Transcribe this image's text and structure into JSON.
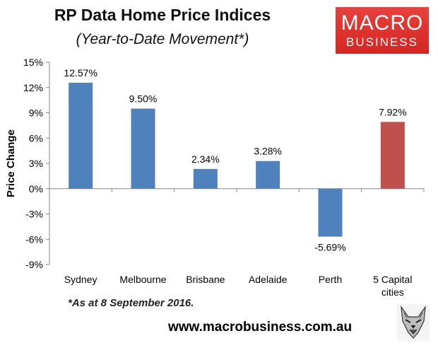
{
  "header": {
    "title": "RP Data Home Price Indices",
    "subtitle": "(Year-to-Date Movement*)"
  },
  "logo": {
    "line1": "MACRO",
    "line2": "BUSINESS"
  },
  "footnote": "*As at 8 September 2016.",
  "url": "www.macrobusiness.com.au",
  "colors": {
    "primary_bar": "#4f81bd",
    "highlight_bar": "#c0504d"
  },
  "chart_data": {
    "type": "bar",
    "title": "RP Data Home Price Indices",
    "subtitle": "(Year-to-Date Movement*)",
    "ylabel": "Price Change",
    "xlabel": "",
    "categories": [
      "Sydney",
      "Melbourne",
      "Brisbane",
      "Adelaide",
      "Perth",
      "5 Capital cities"
    ],
    "category_lines": [
      [
        "Sydney"
      ],
      [
        "Melbourne"
      ],
      [
        "Brisbane"
      ],
      [
        "Adelaide"
      ],
      [
        "Perth"
      ],
      [
        "5 Capital",
        "cities"
      ]
    ],
    "values": [
      12.57,
      9.5,
      2.34,
      3.28,
      -5.69,
      7.92
    ],
    "data_labels": [
      "12.57%",
      "9.50%",
      "2.34%",
      "3.28%",
      "-5.69%",
      "7.92%"
    ],
    "highlight_index": 5,
    "ylim": [
      -9,
      15
    ],
    "yticks": [
      15,
      12,
      9,
      6,
      3,
      0,
      -3,
      -6,
      -9
    ],
    "ytick_labels": [
      "15%",
      "12%",
      "9%",
      "6%",
      "3%",
      "0%",
      "-3%",
      "-6%",
      "-9%"
    ],
    "grid": false,
    "legend": "none"
  }
}
